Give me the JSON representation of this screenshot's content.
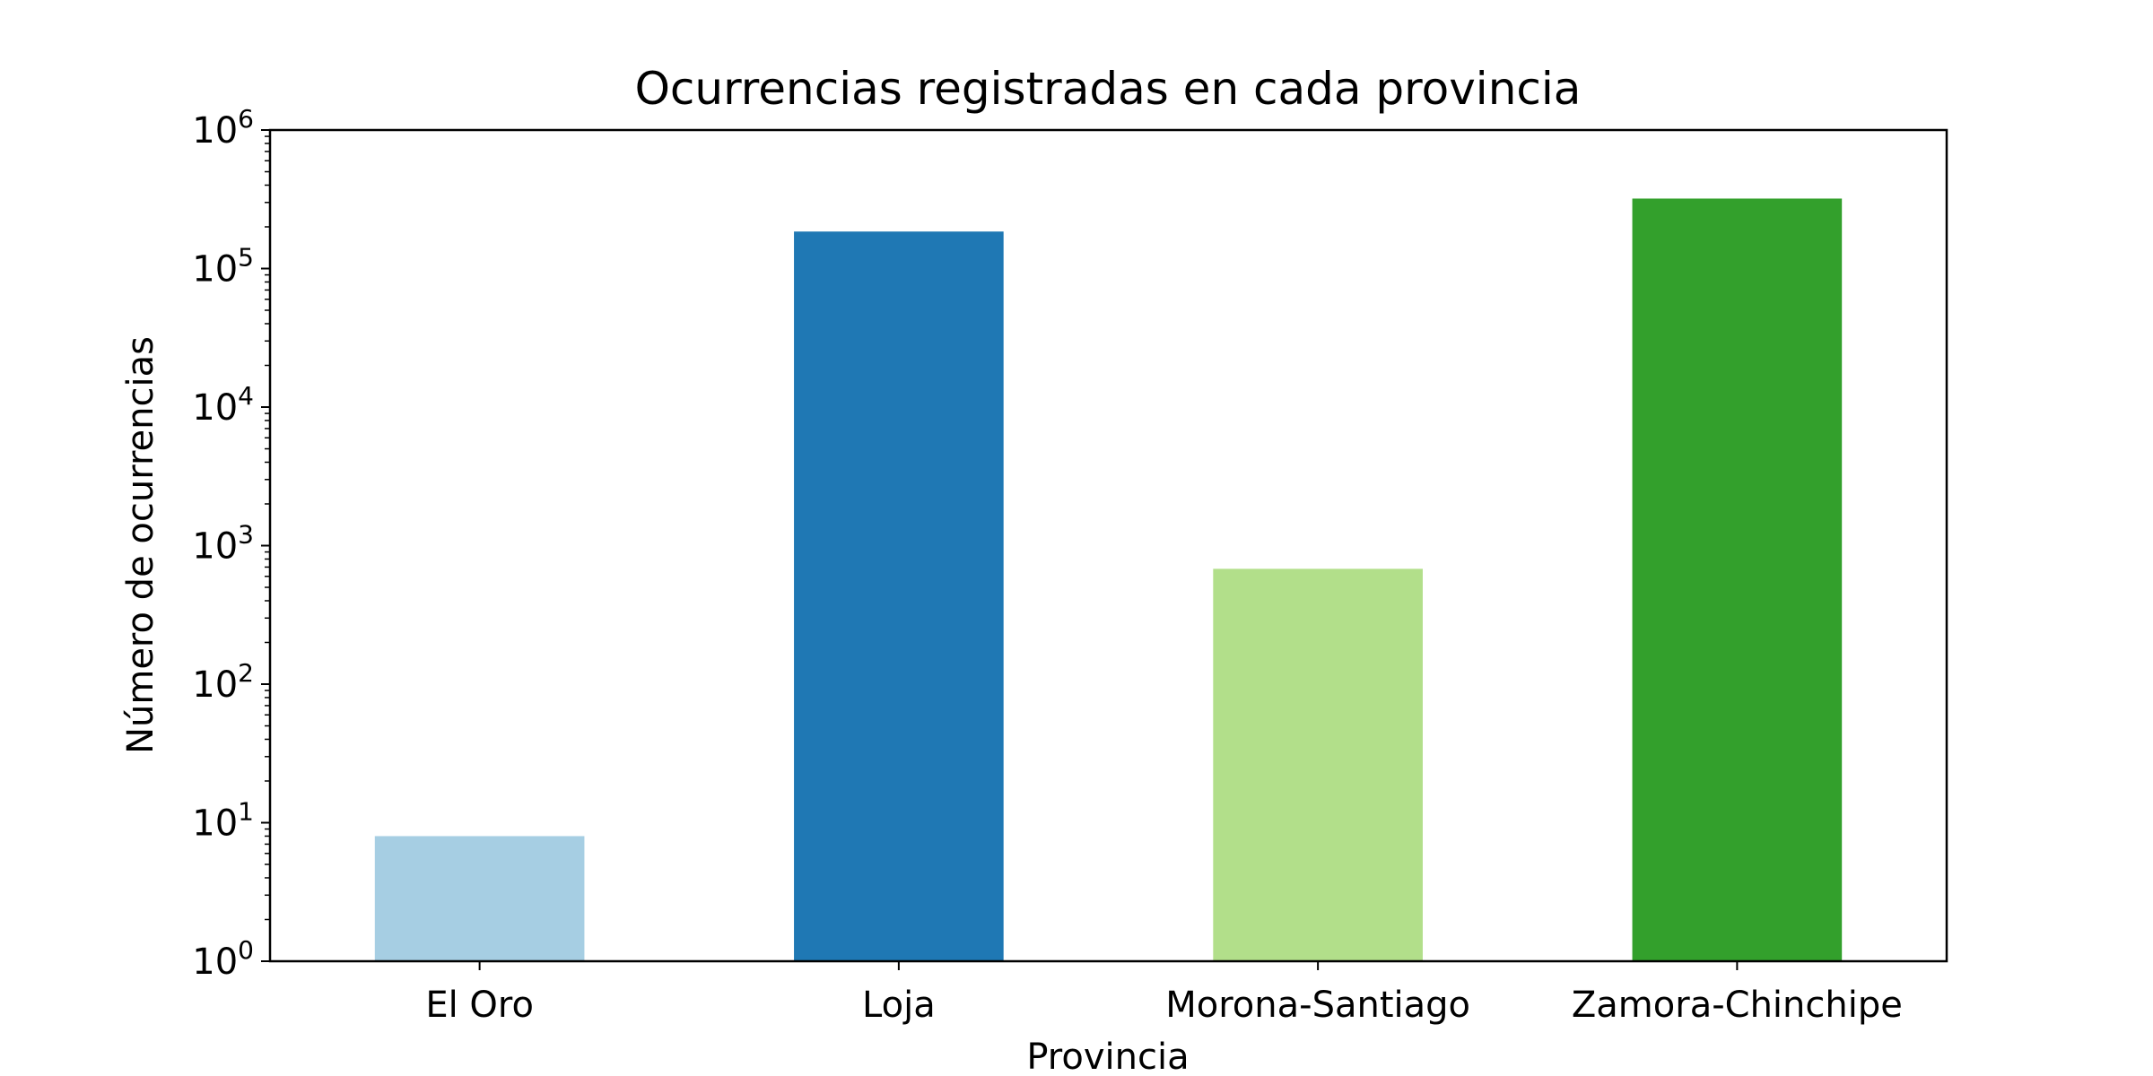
{
  "chart_data": {
    "type": "bar",
    "title": "Ocurrencias registradas en cada provincia",
    "xlabel": "Provincia",
    "ylabel": "Número de ocurrencias",
    "categories": [
      "El Oro",
      "Loja",
      "Morona-Santiago",
      "Zamora-Chinchipe"
    ],
    "values": [
      8,
      185000,
      680,
      320000
    ],
    "colors": [
      "#a6cee3",
      "#1f78b4",
      "#b2df8a",
      "#33a02c"
    ],
    "y_scale": "log",
    "ylim": [
      1,
      1000000
    ],
    "y_ticks": [
      {
        "base": "10",
        "exp": "0"
      },
      {
        "base": "10",
        "exp": "1"
      },
      {
        "base": "10",
        "exp": "2"
      },
      {
        "base": "10",
        "exp": "3"
      },
      {
        "base": "10",
        "exp": "4"
      },
      {
        "base": "10",
        "exp": "5"
      },
      {
        "base": "10",
        "exp": "6"
      }
    ],
    "grid": false,
    "legend": "none"
  }
}
